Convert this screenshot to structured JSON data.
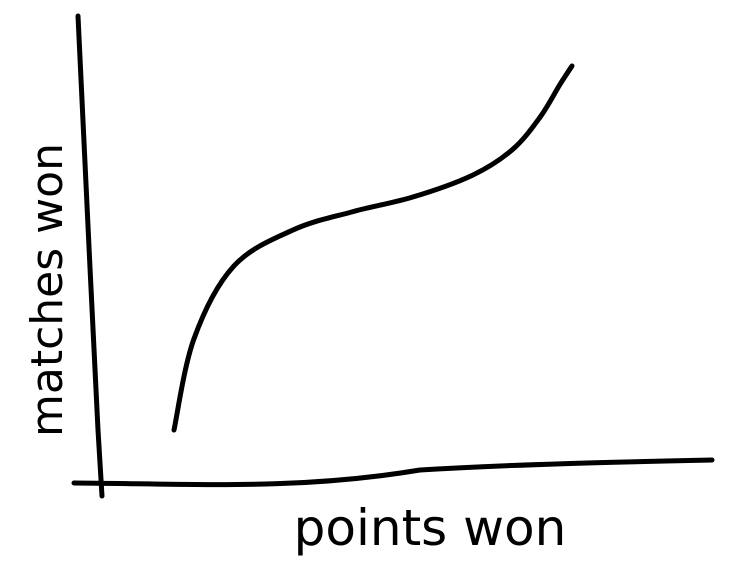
{
  "chart_data": {
    "type": "line",
    "title": "",
    "xlabel": "points won",
    "ylabel": "matches won",
    "grid": false,
    "legend": "none",
    "x_ticks": false,
    "y_ticks": false,
    "line_color": "#000000",
    "series": [
      {
        "x": [
          0.0,
          0.05,
          0.15,
          0.3,
          0.45,
          0.6,
          0.75,
          0.85,
          0.92,
          0.97,
          1.0
        ],
        "y": [
          0.0,
          0.25,
          0.45,
          0.55,
          0.6,
          0.64,
          0.7,
          0.77,
          0.86,
          0.95,
          1.0
        ]
      }
    ]
  }
}
